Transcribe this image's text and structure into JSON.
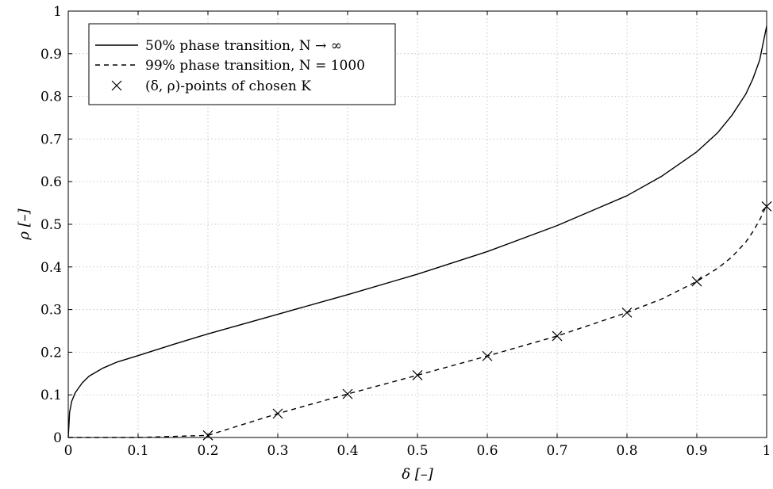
{
  "chart_data": {
    "type": "line",
    "xlabel": "δ [–]",
    "ylabel": "ρ [–]",
    "xlim": [
      0,
      1
    ],
    "ylim": [
      0,
      1
    ],
    "grid": true,
    "legend_position": "top-left",
    "x_ticks": [
      "0",
      "0.1",
      "0.2",
      "0.3",
      "0.4",
      "0.5",
      "0.6",
      "0.7",
      "0.8",
      "0.9",
      "1"
    ],
    "y_ticks": [
      "0",
      "0.1",
      "0.2",
      "0.3",
      "0.4",
      "0.5",
      "0.6",
      "0.7",
      "0.8",
      "0.9",
      "1"
    ],
    "series": [
      {
        "name": "50% phase transition, N → ∞",
        "style": "solid",
        "x": [
          0,
          0.002,
          0.005,
          0.01,
          0.02,
          0.03,
          0.05,
          0.07,
          0.1,
          0.15,
          0.2,
          0.3,
          0.4,
          0.5,
          0.6,
          0.7,
          0.8,
          0.85,
          0.9,
          0.93,
          0.95,
          0.97,
          0.98,
          0.99,
          1.0
        ],
        "y": [
          0,
          0.06,
          0.085,
          0.105,
          0.128,
          0.144,
          0.163,
          0.177,
          0.192,
          0.218,
          0.243,
          0.289,
          0.335,
          0.383,
          0.436,
          0.497,
          0.567,
          0.613,
          0.67,
          0.715,
          0.755,
          0.805,
          0.84,
          0.885,
          0.965
        ]
      },
      {
        "name": "99% phase transition, N = 1000",
        "style": "dashed",
        "x": [
          0,
          0.1,
          0.2,
          0.3,
          0.4,
          0.5,
          0.6,
          0.7,
          0.8,
          0.85,
          0.9,
          0.93,
          0.95,
          0.97,
          0.98,
          0.99,
          1.0
        ],
        "y": [
          0,
          0,
          0.005,
          0.056,
          0.102,
          0.146,
          0.191,
          0.238,
          0.293,
          0.325,
          0.366,
          0.397,
          0.423,
          0.458,
          0.482,
          0.51,
          0.545
        ]
      },
      {
        "name": "(δ, ρ)-points of chosen K",
        "style": "markers-x",
        "x": [
          0.2,
          0.3,
          0.4,
          0.5,
          0.6,
          0.7,
          0.8,
          0.9,
          1.0
        ],
        "y": [
          0.005,
          0.056,
          0.102,
          0.146,
          0.191,
          0.238,
          0.293,
          0.366,
          0.542
        ]
      }
    ]
  }
}
